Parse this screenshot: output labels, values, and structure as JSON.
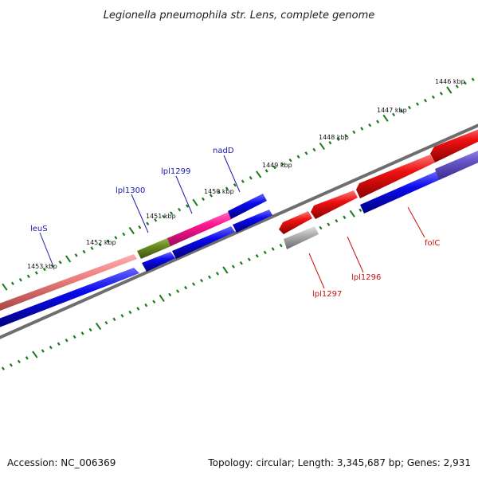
{
  "title": "Legionella pneumophila str. Lens, complete genome",
  "footer": {
    "accession": "Accession: NC_006369",
    "topology": "Topology: circular; Length: 3,345,687 bp; Genes: 2,931"
  },
  "tick_labels": [
    "1446 kbp",
    "1447 kbp",
    "1448 kbp",
    "1449 kbp",
    "1450 kbp",
    "1451 kbp",
    "1452 kbp",
    "1453 kbp"
  ],
  "gene_labels": [
    {
      "name": "leuS",
      "strand": "forward"
    },
    {
      "name": "lpl1300",
      "strand": "forward"
    },
    {
      "name": "lpl1299",
      "strand": "forward"
    },
    {
      "name": "nadD",
      "strand": "forward"
    },
    {
      "name": "folC",
      "strand": "reverse"
    },
    {
      "name": "lpl1296",
      "strand": "reverse"
    },
    {
      "name": "lpl1297",
      "strand": "reverse"
    }
  ],
  "colors": {
    "forward_label": "#1a1aa8",
    "reverse_label": "#cc1111",
    "forward_cds": "#0a0aee",
    "reverse_cds": "#ee1111",
    "leuS_feature": "#f08080",
    "lpl1300_feature": "#6b8e23",
    "lpl1299_feature": "#ff1493",
    "lpl1297_feature": "#b0b0b0",
    "folC_feature": "#6a5acd",
    "backbone": "#888888",
    "tick": "#1a7a1a"
  }
}
